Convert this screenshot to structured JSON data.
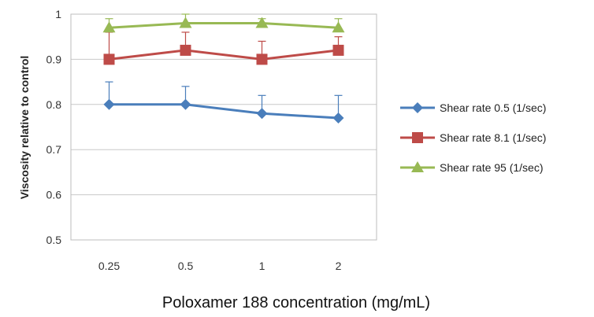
{
  "chart_data": {
    "type": "line",
    "title": "",
    "xlabel": "Poloxamer 188 concentration (mg/mL)",
    "ylabel": "Viscosity relative to control",
    "categories": [
      "0.25",
      "0.5",
      "1",
      "2"
    ],
    "ylim": [
      0.5,
      1
    ],
    "yticks": [
      "0.5",
      "0.6",
      "0.7",
      "0.8",
      "0.9",
      "1"
    ],
    "grid": "horizontal",
    "legend_position": "right",
    "series": [
      {
        "name": "Shear rate 0.5 (1/sec)",
        "color": "#4A7EBB",
        "marker": "diamond",
        "values": [
          0.8,
          0.8,
          0.78,
          0.77
        ],
        "error_plus": [
          0.05,
          0.04,
          0.04,
          0.05
        ]
      },
      {
        "name": "Shear rate 8.1 (1/sec)",
        "color": "#BE4B48",
        "marker": "square",
        "values": [
          0.9,
          0.92,
          0.9,
          0.92
        ],
        "error_plus": [
          0.06,
          0.04,
          0.04,
          0.03
        ]
      },
      {
        "name": "Shear rate 95 (1/sec)",
        "color": "#98B954",
        "marker": "triangle",
        "values": [
          0.97,
          0.98,
          0.98,
          0.97
        ],
        "error_plus": [
          0.02,
          0.02,
          0.01,
          0.02
        ]
      }
    ]
  }
}
